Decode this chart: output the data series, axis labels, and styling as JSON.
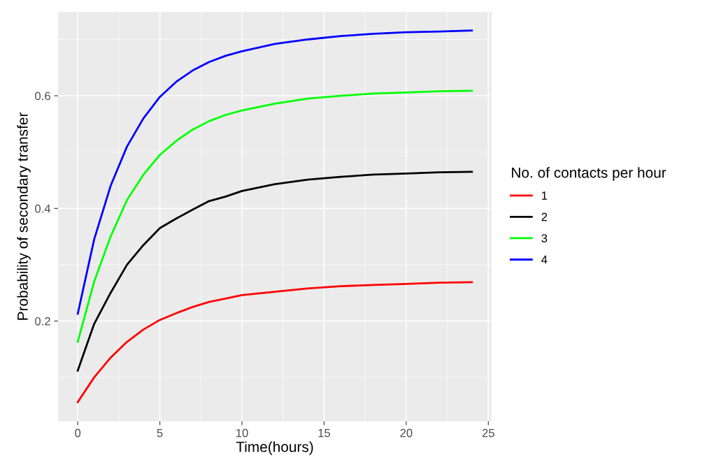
{
  "chart_data": {
    "type": "line",
    "xlabel": "Time(hours)",
    "ylabel": "Probability of secondary transfer",
    "legend_title": "No. of contacts per hour",
    "legend": "right",
    "grid": true,
    "xlim": [
      -1.2,
      25.2
    ],
    "ylim": [
      0.022,
      0.749
    ],
    "xticks": [
      0,
      5,
      10,
      15,
      20,
      25
    ],
    "yticks": [
      0.2,
      0.4,
      0.6
    ],
    "x": [
      0,
      1,
      2,
      3,
      4,
      5,
      6,
      7,
      8,
      9,
      10,
      12,
      14,
      16,
      18,
      20,
      22,
      24
    ],
    "series": [
      {
        "name": "1",
        "color": "#ff0000",
        "values": [
          0.056,
          0.1,
          0.135,
          0.163,
          0.185,
          0.202,
          0.214,
          0.225,
          0.234,
          0.24,
          0.246,
          0.252,
          0.258,
          0.262,
          0.264,
          0.266,
          0.268,
          0.269
        ]
      },
      {
        "name": "2",
        "color": "#000000",
        "values": [
          0.112,
          0.195,
          0.25,
          0.3,
          0.335,
          0.365,
          0.382,
          0.398,
          0.413,
          0.421,
          0.431,
          0.443,
          0.451,
          0.456,
          0.46,
          0.462,
          0.464,
          0.465
        ]
      },
      {
        "name": "3",
        "color": "#00ff00",
        "values": [
          0.163,
          0.27,
          0.35,
          0.415,
          0.46,
          0.495,
          0.52,
          0.54,
          0.555,
          0.566,
          0.574,
          0.586,
          0.595,
          0.6,
          0.604,
          0.606,
          0.608,
          0.609
        ]
      },
      {
        "name": "4",
        "color": "#0000ff",
        "values": [
          0.213,
          0.345,
          0.44,
          0.51,
          0.56,
          0.598,
          0.625,
          0.645,
          0.66,
          0.671,
          0.679,
          0.692,
          0.7,
          0.706,
          0.71,
          0.713,
          0.714,
          0.716
        ]
      }
    ]
  }
}
